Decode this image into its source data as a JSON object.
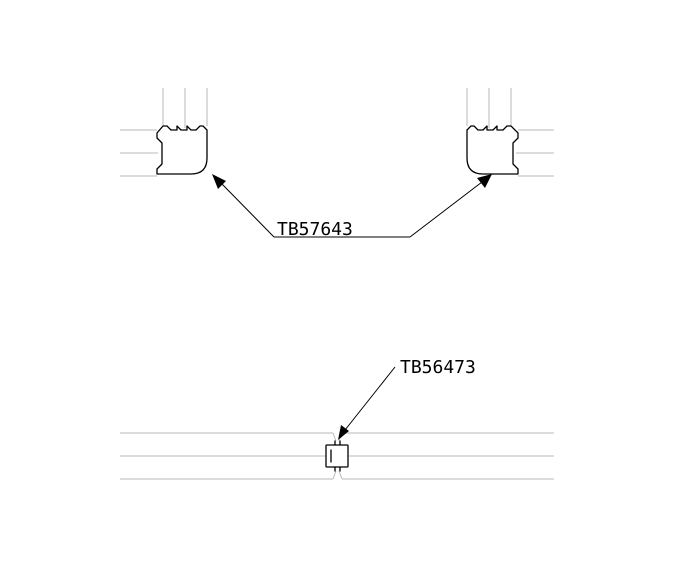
{
  "callouts": {
    "corner_part": {
      "label": "TB57643"
    },
    "joint_part": {
      "label": "TB56473"
    }
  },
  "colors": {
    "ink": "#000000",
    "profile_lines": "#b9b9b9",
    "background": "#ffffff"
  }
}
